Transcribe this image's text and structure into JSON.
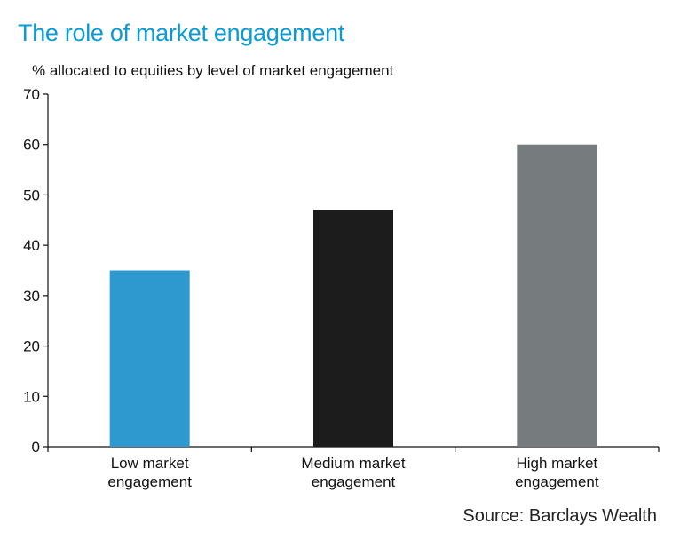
{
  "chart_data": {
    "type": "bar",
    "title": "The role of market engagement",
    "subtitle": "% allocated to equities by level of market engagement",
    "categories": [
      [
        "Low market",
        "engagement"
      ],
      [
        "Medium market",
        "engagement"
      ],
      [
        "High market",
        "engagement"
      ]
    ],
    "values": [
      35,
      47,
      60
    ],
    "colors": [
      "#2e99cf",
      "#1c1c1c",
      "#767b7e"
    ],
    "ylim": [
      0,
      70
    ],
    "yticks": [
      0,
      10,
      20,
      30,
      40,
      50,
      60,
      70
    ],
    "grid": false,
    "source": "Source: Barclays Wealth"
  }
}
